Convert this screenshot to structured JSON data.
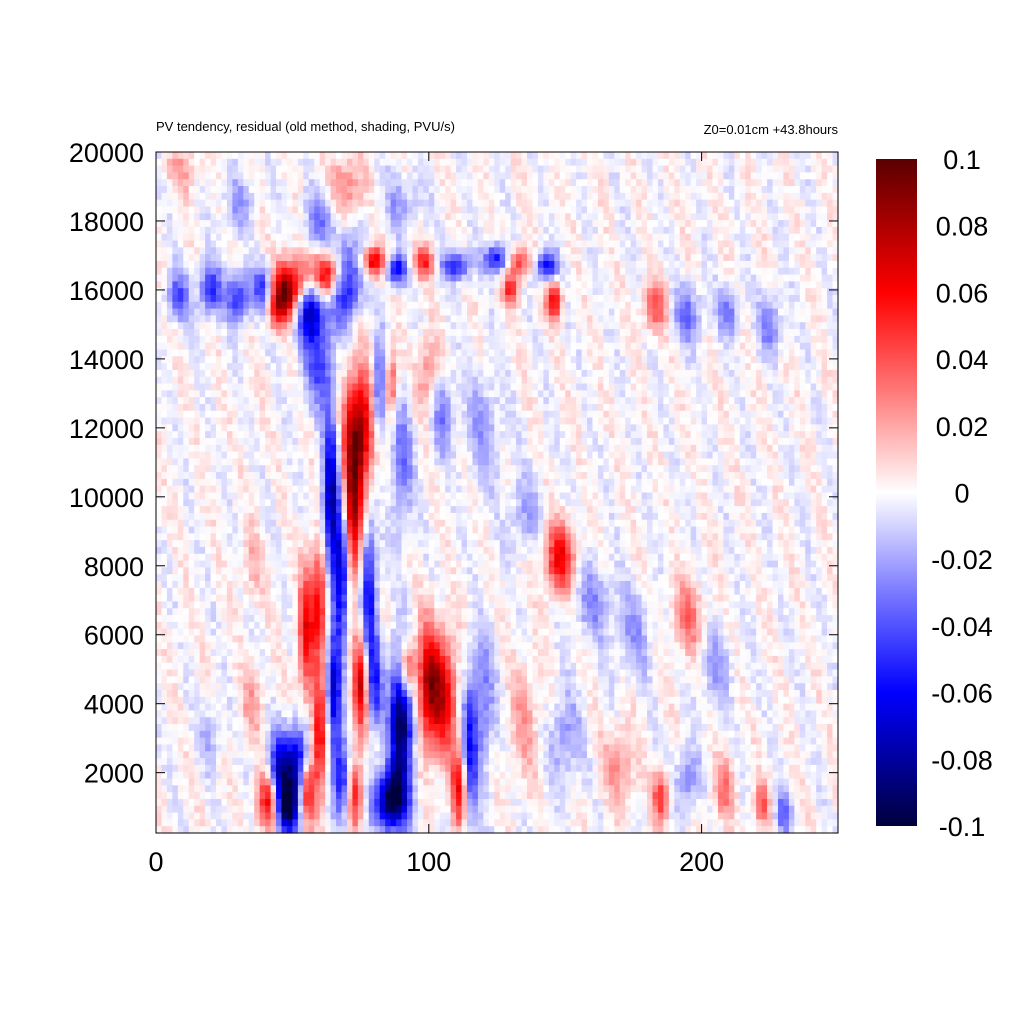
{
  "chart_data": {
    "type": "heatmap",
    "title": "PV tendency, residual (old method, shading, PVU/s)",
    "subtitle": "Z0=0.01cm   +43.8hours",
    "xlabel": "",
    "ylabel": "",
    "xlim": [
      0,
      250
    ],
    "ylim": [
      250,
      20000
    ],
    "x_ticks": [
      0,
      100,
      200
    ],
    "y_ticks": [
      2000,
      4000,
      6000,
      8000,
      10000,
      12000,
      14000,
      16000,
      18000,
      20000
    ],
    "grid": false,
    "colorbar": {
      "range": [
        -0.1,
        0.1
      ],
      "ticks": [
        0.1,
        0.08,
        0.06,
        0.04,
        0.02,
        0,
        -0.02,
        -0.04,
        -0.06,
        -0.08,
        -0.1
      ],
      "tick_labels": [
        "0.1",
        "0.08",
        "0.06",
        "0.04",
        "0.02",
        "0",
        "-0.02",
        "-0.04",
        "-0.06",
        "-0.08",
        "-0.1"
      ],
      "colormap": "blue-white-red",
      "stops": [
        {
          "value": -0.1,
          "color": "#00003c"
        },
        {
          "value": -0.06,
          "color": "#0000ff"
        },
        {
          "value": -0.03,
          "color": "#7a7aff"
        },
        {
          "value": 0,
          "color": "#ffffff"
        },
        {
          "value": 0.03,
          "color": "#ff7a7a"
        },
        {
          "value": 0.06,
          "color": "#ff0000"
        },
        {
          "value": 0.1,
          "color": "#5a0000"
        }
      ]
    },
    "grid_size": {
      "nx": 125,
      "ny": 100
    },
    "features": [
      {
        "x": 50,
        "y": 16000,
        "sx": 5,
        "sy": 600,
        "value": 0.1
      },
      {
        "x": 56,
        "y": 15600,
        "sx": 4,
        "sy": 700,
        "value": -0.1
      },
      {
        "x": 64,
        "y": 16400,
        "sx": 5,
        "sy": 500,
        "value": 0.1
      },
      {
        "x": 69,
        "y": 16300,
        "sx": 4,
        "sy": 700,
        "value": -0.1
      },
      {
        "x": 40,
        "y": 16000,
        "sx": 3,
        "sy": 500,
        "value": -0.06
      },
      {
        "x": 44,
        "y": 15600,
        "sx": 3,
        "sy": 500,
        "value": 0.05
      },
      {
        "x": 30,
        "y": 15800,
        "sx": 3,
        "sy": 500,
        "value": -0.05
      },
      {
        "x": 20,
        "y": 16000,
        "sx": 3,
        "sy": 500,
        "value": -0.05
      },
      {
        "x": 8,
        "y": 15800,
        "sx": 3,
        "sy": 500,
        "value": -0.04
      },
      {
        "x": 80,
        "y": 16800,
        "sx": 3,
        "sy": 300,
        "value": 0.07
      },
      {
        "x": 88,
        "y": 16600,
        "sx": 3,
        "sy": 300,
        "value": -0.06
      },
      {
        "x": 98,
        "y": 16800,
        "sx": 3,
        "sy": 300,
        "value": 0.05
      },
      {
        "x": 110,
        "y": 16700,
        "sx": 4,
        "sy": 300,
        "value": -0.05
      },
      {
        "x": 125,
        "y": 16900,
        "sx": 3,
        "sy": 300,
        "value": -0.06
      },
      {
        "x": 133,
        "y": 16800,
        "sx": 3,
        "sy": 300,
        "value": 0.05
      },
      {
        "x": 143,
        "y": 16700,
        "sx": 3,
        "sy": 300,
        "value": -0.06
      },
      {
        "x": 130,
        "y": 16000,
        "sx": 2,
        "sy": 300,
        "value": 0.05
      },
      {
        "x": 146,
        "y": 15700,
        "sx": 2,
        "sy": 400,
        "value": 0.06
      },
      {
        "x": 183,
        "y": 15500,
        "sx": 3,
        "sy": 500,
        "value": 0.04
      },
      {
        "x": 195,
        "y": 15300,
        "sx": 4,
        "sy": 600,
        "value": -0.03
      },
      {
        "x": 210,
        "y": 15400,
        "sx": 3,
        "sy": 500,
        "value": -0.03
      },
      {
        "x": 225,
        "y": 15000,
        "sx": 3,
        "sy": 600,
        "value": -0.03
      },
      {
        "x": 75,
        "y": 12000,
        "sx": 4,
        "sy": 1200,
        "value": 0.08
      },
      {
        "x": 72,
        "y": 9500,
        "sx": 2.5,
        "sy": 1500,
        "value": 0.08
      },
      {
        "x": 64,
        "y": 10000,
        "sx": 2,
        "sy": 1600,
        "value": -0.08
      },
      {
        "x": 68,
        "y": 7800,
        "sx": 2,
        "sy": 1400,
        "value": -0.08
      },
      {
        "x": 78,
        "y": 7200,
        "sx": 2,
        "sy": 1500,
        "value": -0.06
      },
      {
        "x": 60,
        "y": 7000,
        "sx": 2,
        "sy": 1200,
        "value": 0.06
      },
      {
        "x": 55,
        "y": 6000,
        "sx": 2,
        "sy": 1300,
        "value": 0.06
      },
      {
        "x": 82,
        "y": 13000,
        "sx": 2,
        "sy": 1000,
        "value": -0.06
      },
      {
        "x": 86,
        "y": 13200,
        "sx": 2,
        "sy": 700,
        "value": 0.05
      },
      {
        "x": 60,
        "y": 13800,
        "sx": 4,
        "sy": 900,
        "value": -0.04
      },
      {
        "x": 90,
        "y": 11000,
        "sx": 3,
        "sy": 1500,
        "value": -0.03
      },
      {
        "x": 100,
        "y": 13500,
        "sx": 3,
        "sy": 800,
        "value": 0.03
      },
      {
        "x": 105,
        "y": 12500,
        "sx": 3,
        "sy": 900,
        "value": -0.03
      },
      {
        "x": 120,
        "y": 12000,
        "sx": 5,
        "sy": 1200,
        "value": -0.02
      },
      {
        "x": 148,
        "y": 8200,
        "sx": 4,
        "sy": 700,
        "value": 0.06
      },
      {
        "x": 135,
        "y": 9500,
        "sx": 4,
        "sy": 800,
        "value": -0.02
      },
      {
        "x": 160,
        "y": 7000,
        "sx": 5,
        "sy": 800,
        "value": -0.025
      },
      {
        "x": 175,
        "y": 6000,
        "sx": 5,
        "sy": 900,
        "value": -0.02
      },
      {
        "x": 195,
        "y": 6500,
        "sx": 4,
        "sy": 800,
        "value": 0.03
      },
      {
        "x": 205,
        "y": 5000,
        "sx": 4,
        "sy": 800,
        "value": -0.02
      },
      {
        "x": 100,
        "y": 4500,
        "sx": 3,
        "sy": 1200,
        "value": 0.08
      },
      {
        "x": 106,
        "y": 4200,
        "sx": 3,
        "sy": 1200,
        "value": 0.06
      },
      {
        "x": 90,
        "y": 3500,
        "sx": 3,
        "sy": 1400,
        "value": -0.1
      },
      {
        "x": 86,
        "y": 1200,
        "sx": 4,
        "sy": 600,
        "value": -0.1
      },
      {
        "x": 92,
        "y": 5000,
        "sx": 2,
        "sy": 600,
        "value": 0.07
      },
      {
        "x": 80,
        "y": 4500,
        "sx": 2,
        "sy": 1000,
        "value": -0.05
      },
      {
        "x": 75,
        "y": 4500,
        "sx": 2,
        "sy": 1000,
        "value": 0.07
      },
      {
        "x": 65,
        "y": 4200,
        "sx": 2,
        "sy": 1200,
        "value": -0.07
      },
      {
        "x": 60,
        "y": 3000,
        "sx": 2,
        "sy": 1200,
        "value": 0.07
      },
      {
        "x": 52,
        "y": 2200,
        "sx": 3,
        "sy": 800,
        "value": -0.08
      },
      {
        "x": 45,
        "y": 1800,
        "sx": 3,
        "sy": 800,
        "value": -0.09
      },
      {
        "x": 42,
        "y": 1200,
        "sx": 3,
        "sy": 600,
        "value": 0.09
      },
      {
        "x": 48,
        "y": 900,
        "sx": 3,
        "sy": 500,
        "value": -0.08
      },
      {
        "x": 55,
        "y": 1500,
        "sx": 2,
        "sy": 700,
        "value": 0.07
      },
      {
        "x": 68,
        "y": 1800,
        "sx": 2,
        "sy": 800,
        "value": -0.06
      },
      {
        "x": 73,
        "y": 1400,
        "sx": 2,
        "sy": 700,
        "value": 0.05
      },
      {
        "x": 115,
        "y": 2500,
        "sx": 2,
        "sy": 1500,
        "value": -0.05
      },
      {
        "x": 111,
        "y": 1500,
        "sx": 2,
        "sy": 800,
        "value": 0.06
      },
      {
        "x": 120,
        "y": 4000,
        "sx": 3,
        "sy": 1500,
        "value": -0.03
      },
      {
        "x": 135,
        "y": 3500,
        "sx": 4,
        "sy": 1200,
        "value": 0.02
      },
      {
        "x": 150,
        "y": 3000,
        "sx": 4,
        "sy": 900,
        "value": -0.025
      },
      {
        "x": 170,
        "y": 2200,
        "sx": 4,
        "sy": 800,
        "value": 0.025
      },
      {
        "x": 185,
        "y": 1300,
        "sx": 2,
        "sy": 500,
        "value": 0.05
      },
      {
        "x": 195,
        "y": 1800,
        "sx": 3,
        "sy": 600,
        "value": -0.03
      },
      {
        "x": 208,
        "y": 1500,
        "sx": 3,
        "sy": 600,
        "value": 0.03
      },
      {
        "x": 222,
        "y": 1100,
        "sx": 2,
        "sy": 400,
        "value": 0.04
      },
      {
        "x": 230,
        "y": 800,
        "sx": 2,
        "sy": 400,
        "value": -0.04
      },
      {
        "x": 10,
        "y": 19500,
        "sx": 4,
        "sy": 500,
        "value": 0.02
      },
      {
        "x": 30,
        "y": 18500,
        "sx": 4,
        "sy": 600,
        "value": -0.02
      },
      {
        "x": 60,
        "y": 18000,
        "sx": 4,
        "sy": 600,
        "value": -0.03
      },
      {
        "x": 70,
        "y": 19000,
        "sx": 4,
        "sy": 600,
        "value": 0.03
      },
      {
        "x": 90,
        "y": 18500,
        "sx": 5,
        "sy": 600,
        "value": -0.02
      },
      {
        "x": 35,
        "y": 8000,
        "sx": 3,
        "sy": 800,
        "value": 0.015
      },
      {
        "x": 35,
        "y": 4000,
        "sx": 3,
        "sy": 700,
        "value": 0.02
      },
      {
        "x": 20,
        "y": 3000,
        "sx": 3,
        "sy": 700,
        "value": -0.015
      }
    ],
    "noise_amplitude": 0.01
  }
}
